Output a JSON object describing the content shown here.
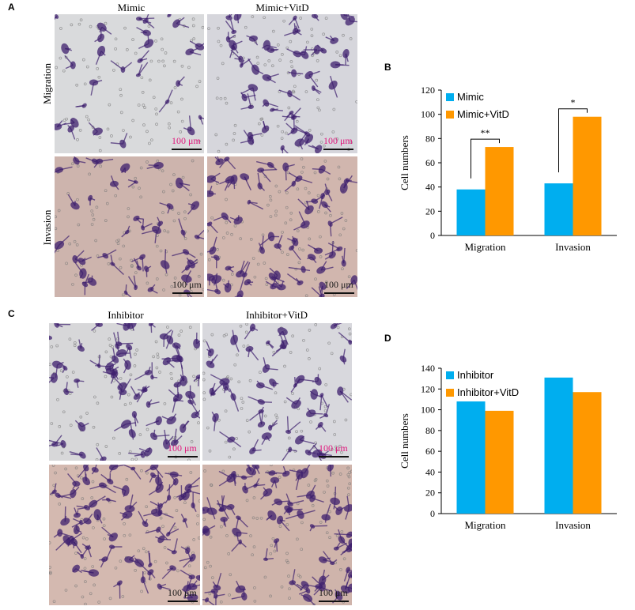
{
  "panels": {
    "A": "A",
    "B": "B",
    "C": "C",
    "D": "D"
  },
  "panel_a": {
    "col_headers": [
      "Mimic",
      "Mimic+VitD"
    ],
    "row_headers": [
      "Migration",
      "Invasion"
    ],
    "scale_label": "100 μm"
  },
  "panel_c": {
    "col_headers": [
      "Inhibitor",
      "Inhibitor+VitD"
    ],
    "scale_label": "100 μm"
  },
  "colors": {
    "blue": "#00aeef",
    "orange": "#ff9800",
    "stain": "#3d1f6e"
  },
  "chart_data": [
    {
      "type": "bar",
      "panel": "B",
      "categories": [
        "Migration",
        "Invasion"
      ],
      "series": [
        {
          "name": "Mimic",
          "values": [
            38,
            43
          ]
        },
        {
          "name": "Mimic+VitD",
          "values": [
            73,
            98
          ]
        }
      ],
      "ylabel": "Cell numbers",
      "ylim": [
        0,
        120
      ],
      "yticks": [
        0,
        20,
        40,
        60,
        80,
        100,
        120
      ],
      "significance": [
        "**",
        "*"
      ],
      "legend": "top-left"
    },
    {
      "type": "bar",
      "panel": "D",
      "categories": [
        "Migration",
        "Invasion"
      ],
      "series": [
        {
          "name": "Inhibitor",
          "values": [
            108,
            131
          ]
        },
        {
          "name": "Inhibitor+VitD",
          "values": [
            99,
            117
          ]
        }
      ],
      "ylabel": "Cell numbers",
      "ylim": [
        0,
        140
      ],
      "yticks": [
        0,
        20,
        40,
        60,
        80,
        100,
        120,
        140
      ],
      "legend": "top-left"
    }
  ]
}
